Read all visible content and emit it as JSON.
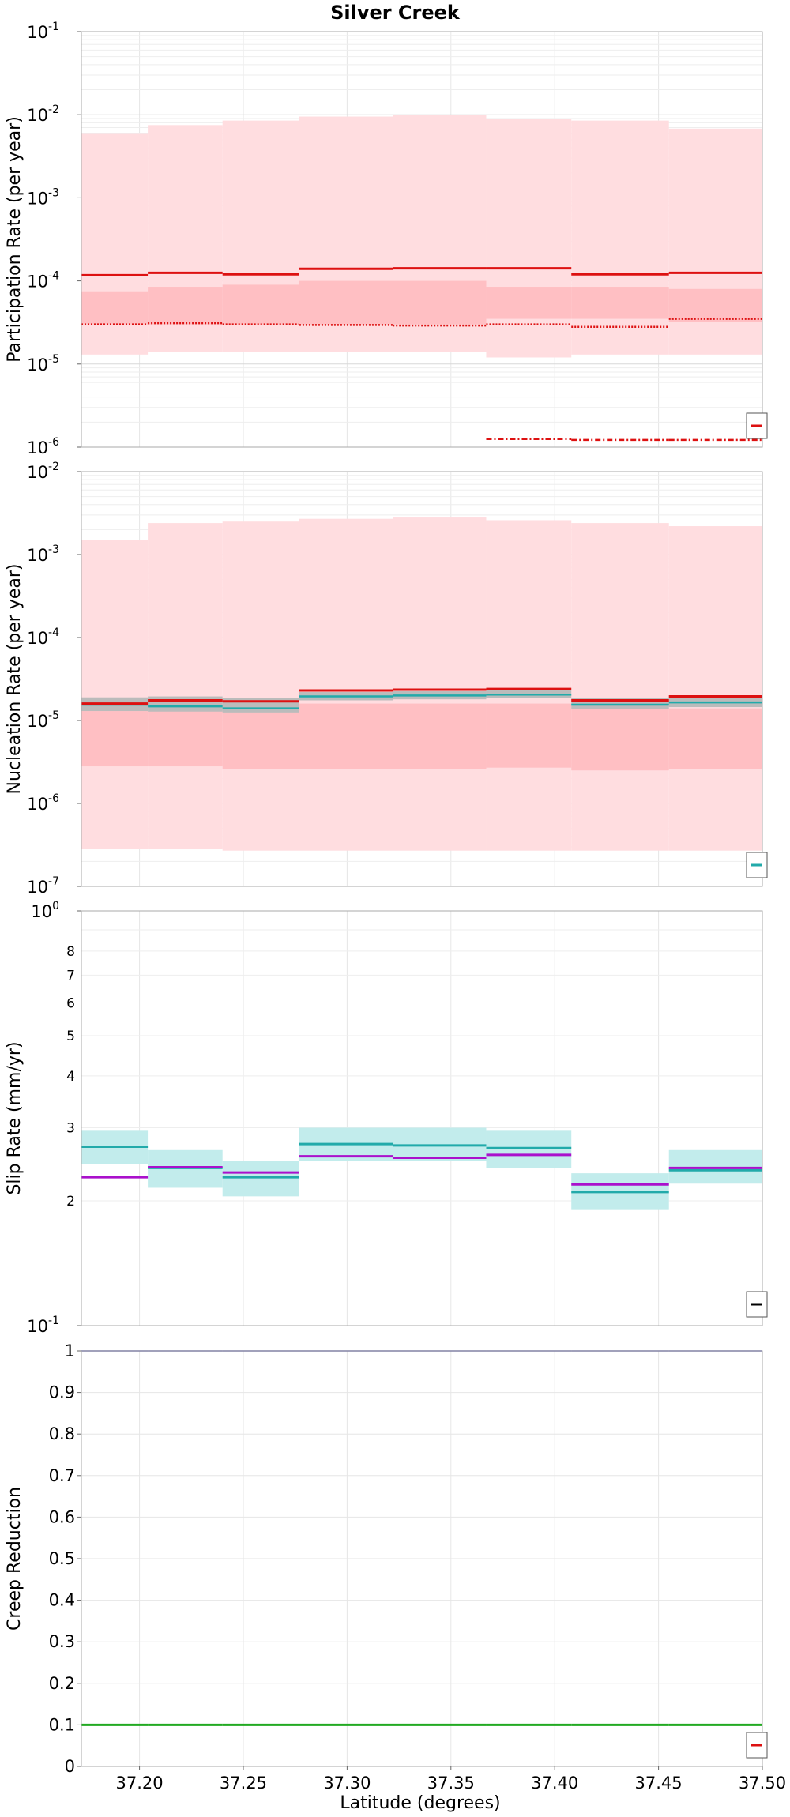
{
  "chart_data": {
    "title": "Silver Creek",
    "xlabel": "Latitude (degrees)",
    "xlim": [
      37.172,
      37.5
    ],
    "xticks": [
      "37.20",
      "37.25",
      "37.30",
      "37.35",
      "37.40",
      "37.45",
      "37.50"
    ],
    "xtick_values": [
      37.2,
      37.25,
      37.3,
      37.35,
      37.4,
      37.45,
      37.5
    ],
    "grid": true,
    "segment_edges": [
      37.172,
      37.204,
      37.24,
      37.277,
      37.322,
      37.367,
      37.408,
      37.455,
      37.5
    ],
    "panels": [
      {
        "type": "line",
        "ylabel": "Participation Rate (per year)",
        "scale": "log",
        "ylim": [
          1e-06,
          0.1
        ],
        "yticks": [
          {
            "base": "10",
            "exp": "-6",
            "value": 1e-06
          },
          {
            "base": "10",
            "exp": "-5",
            "value": 1e-05
          },
          {
            "base": "10",
            "exp": "-4",
            "value": 0.0001
          },
          {
            "base": "10",
            "exp": "-3",
            "value": 0.001
          },
          {
            "base": "10",
            "exp": "-2",
            "value": 0.01
          },
          {
            "base": "10",
            "exp": "-1",
            "value": 0.1
          }
        ],
        "bands": [
          {
            "color": "#ffdde0",
            "lower": [
              1.3e-05,
              1.4e-05,
              1.4e-05,
              1.4e-05,
              1.4e-05,
              1.2e-05,
              1.3e-05,
              1.3e-05
            ],
            "upper": [
              0.006,
              0.0075,
              0.0085,
              0.0095,
              0.01,
              0.009,
              0.0085,
              0.0068
            ]
          },
          {
            "color": "#ffbfc3",
            "lower": [
              3e-05,
              3e-05,
              3e-05,
              3e-05,
              3e-05,
              3.5e-05,
              3.5e-05,
              3.2e-05
            ],
            "upper": [
              7.5e-05,
              8.5e-05,
              9e-05,
              0.0001,
              0.0001,
              8.5e-05,
              8.5e-05,
              8e-05
            ]
          }
        ],
        "series": [
          {
            "color": "#dd1111",
            "style": "solid",
            "width": 3,
            "values": [
              0.000117,
              0.000125,
              0.00012,
              0.00014,
              0.000142,
              0.000142,
              0.00012,
              0.000125
            ]
          },
          {
            "color": "#dd1111",
            "style": "dotted",
            "width": 2.5,
            "values": [
              3e-05,
              3.1e-05,
              3e-05,
              2.95e-05,
              2.9e-05,
              3e-05,
              2.8e-05,
              3.5e-05
            ]
          },
          {
            "color": "#dd1111",
            "style": "dashdot",
            "width": 2.5,
            "values": [
              null,
              null,
              null,
              null,
              null,
              1.25e-06,
              1.22e-06,
              1.22e-06
            ]
          }
        ],
        "legend": {
          "placement": "bottom-right",
          "color": "#dd1111"
        }
      },
      {
        "type": "line",
        "ylabel": "Nucleation Rate (per year)",
        "scale": "log",
        "ylim": [
          1e-07,
          0.01
        ],
        "yticks": [
          {
            "base": "10",
            "exp": "-7",
            "value": 1e-07
          },
          {
            "base": "10",
            "exp": "-6",
            "value": 1e-06
          },
          {
            "base": "10",
            "exp": "-5",
            "value": 1e-05
          },
          {
            "base": "10",
            "exp": "-4",
            "value": 0.0001
          },
          {
            "base": "10",
            "exp": "-3",
            "value": 0.001
          },
          {
            "base": "10",
            "exp": "-2",
            "value": 0.01
          }
        ],
        "bands": [
          {
            "color": "#ffdde0",
            "lower": [
              2.8e-07,
              2.8e-07,
              2.7e-07,
              2.7e-07,
              2.7e-07,
              2.7e-07,
              2.7e-07,
              2.7e-07
            ],
            "upper": [
              0.0015,
              0.0024,
              0.0025,
              0.0027,
              0.0028,
              0.0026,
              0.0024,
              0.0022
            ]
          },
          {
            "color": "#ffbfc3",
            "lower": [
              2.8e-06,
              2.8e-06,
              2.6e-06,
              2.6e-06,
              2.6e-06,
              2.7e-06,
              2.5e-06,
              2.6e-06
            ],
            "upper": [
              1.3e-05,
              1.3e-05,
              1.4e-05,
              1.6e-05,
              1.6e-05,
              1.6e-05,
              1.4e-05,
              1.4e-05
            ]
          },
          {
            "color": "#bbbbbb",
            "lower": [
              1.3e-05,
              1.28e-05,
              1.25e-05,
              1.75e-05,
              1.8e-05,
              1.85e-05,
              1.38e-05,
              1.45e-05
            ],
            "upper": [
              1.9e-05,
              1.95e-05,
              1.85e-05,
              2.2e-05,
              2.25e-05,
              2.3e-05,
              1.85e-05,
              2e-05
            ]
          }
        ],
        "series": [
          {
            "color": "#22aaaa",
            "style": "solid",
            "width": 2.5,
            "values": [
              1.55e-05,
              1.48e-05,
              1.4e-05,
              1.95e-05,
              2e-05,
              2.05e-05,
              1.55e-05,
              1.65e-05
            ]
          },
          {
            "color": "#dd1111",
            "style": "solid",
            "width": 3,
            "values": [
              1.6e-05,
              1.75e-05,
              1.7e-05,
              2.3e-05,
              2.35e-05,
              2.4e-05,
              1.75e-05,
              1.95e-05
            ]
          }
        ],
        "legend": {
          "placement": "bottom-right",
          "color": "#22aaaa"
        }
      },
      {
        "type": "line",
        "ylabel": "Slip Rate (mm/yr)",
        "scale": "log",
        "ylim": [
          0.1,
          1
        ],
        "yticks": [
          {
            "base": "10",
            "exp": "-1",
            "value": 0.1
          },
          {
            "base": "10",
            "exp": "0",
            "value": 1
          }
        ],
        "minor_tick_labels": [
          {
            "label": "2",
            "value": 0.2
          },
          {
            "label": "3",
            "value": 0.3
          },
          {
            "label": "4",
            "value": 0.4
          },
          {
            "label": "5",
            "value": 0.5
          },
          {
            "label": "6",
            "value": 0.6
          },
          {
            "label": "7",
            "value": 0.7
          },
          {
            "label": "8",
            "value": 0.8
          }
        ],
        "bands": [
          {
            "color": "#c2ecec",
            "lower": [
              0.245,
              0.215,
              0.205,
              0.25,
              0.25,
              0.24,
              0.19,
              0.22
            ],
            "upper": [
              0.295,
              0.265,
              0.25,
              0.3,
              0.3,
              0.295,
              0.233,
              0.265
            ]
          }
        ],
        "series": [
          {
            "color": "#22aaaa",
            "style": "solid",
            "width": 3,
            "values": [
              0.27,
              0.24,
              0.228,
              0.274,
              0.272,
              0.268,
              0.21,
              0.237
            ]
          },
          {
            "color": "#aa11cc",
            "style": "solid",
            "width": 3,
            "values": [
              0.228,
              0.241,
              0.234,
              0.256,
              0.254,
              0.258,
              0.219,
              0.24
            ]
          }
        ],
        "legend": {
          "placement": "bottom-right",
          "color": "#000000"
        }
      },
      {
        "type": "line",
        "ylabel": "Creep Reduction",
        "scale": "linear",
        "ylim": [
          0,
          1
        ],
        "yticks": [
          {
            "label": "0",
            "value": 0
          },
          {
            "label": "0.1",
            "value": 0.1
          },
          {
            "label": "0.2",
            "value": 0.2
          },
          {
            "label": "0.3",
            "value": 0.3
          },
          {
            "label": "0.4",
            "value": 0.4
          },
          {
            "label": "0.5",
            "value": 0.5
          },
          {
            "label": "0.6",
            "value": 0.6
          },
          {
            "label": "0.7",
            "value": 0.7
          },
          {
            "label": "0.8",
            "value": 0.8
          },
          {
            "label": "0.9",
            "value": 0.9
          },
          {
            "label": "1",
            "value": 1
          }
        ],
        "bands": [],
        "series": [
          {
            "color": "#22aa22",
            "style": "solid",
            "width": 3,
            "values": [
              0.1,
              0.1,
              0.1,
              0.1,
              0.1,
              0.1,
              0.1,
              0.1
            ]
          },
          {
            "color": "#333399",
            "style": "solid",
            "width": 1.5,
            "values": [
              1,
              1,
              1,
              1,
              1,
              1,
              1,
              1
            ]
          }
        ],
        "legend": {
          "placement": "bottom-right",
          "color": "#dd1111"
        }
      }
    ]
  }
}
